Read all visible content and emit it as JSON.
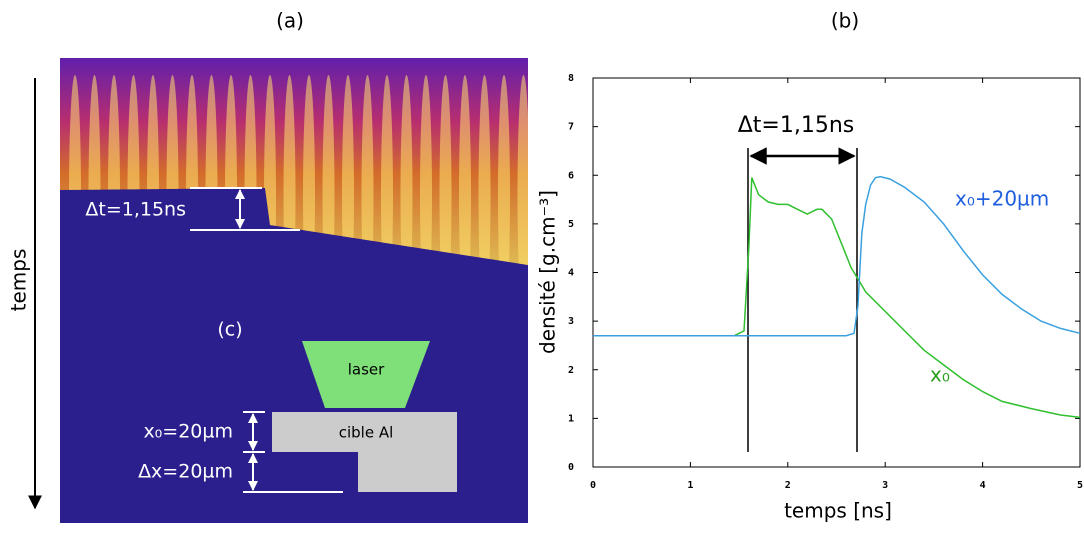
{
  "panel_a": {
    "title": "(a)",
    "time_axis_label": "temps",
    "delta_t_label": "Δt=1,15ns",
    "inset_label": "(c)",
    "laser_label": "laser",
    "target_label": "cible Al",
    "x0_label": "x₀=20µm",
    "dx_label": "Δx=20µm"
  },
  "chart_data": {
    "type": "line",
    "title": "(b)",
    "x_label": "temps [ns]",
    "y_label": "densité [g.cm⁻³]",
    "annotation": "Δt=1,15ns",
    "xlim": [
      0,
      5
    ],
    "ylim": [
      0,
      8
    ],
    "xticks": [
      0,
      1,
      2,
      3,
      4,
      5
    ],
    "yticks": [
      0,
      1,
      2,
      3,
      4,
      5,
      6,
      7,
      8
    ],
    "series": [
      {
        "name": "x₀",
        "color": "#2fbf2f",
        "label_color": "#2a9e1e",
        "x": [
          1.45,
          1.55,
          1.6,
          1.63,
          1.7,
          1.8,
          1.9,
          2.0,
          2.1,
          2.2,
          2.3,
          2.35,
          2.45,
          2.55,
          2.65,
          2.8,
          3.0,
          3.2,
          3.4,
          3.6,
          3.8,
          4.0,
          4.2,
          4.5,
          4.8,
          5.0
        ],
        "values": [
          2.7,
          2.8,
          4.5,
          5.95,
          5.6,
          5.45,
          5.4,
          5.4,
          5.3,
          5.2,
          5.3,
          5.3,
          5.1,
          4.6,
          4.1,
          3.6,
          3.2,
          2.8,
          2.4,
          2.1,
          1.8,
          1.55,
          1.35,
          1.2,
          1.07,
          1.02
        ]
      },
      {
        "name": "x₀+20µm",
        "color": "#3aa0e0",
        "label_color": "#1f5fdf",
        "x": [
          0,
          2.6,
          2.68,
          2.72,
          2.76,
          2.8,
          2.85,
          2.9,
          2.95,
          3.05,
          3.2,
          3.4,
          3.6,
          3.8,
          4.0,
          4.2,
          4.4,
          4.6,
          4.8,
          5.0
        ],
        "values": [
          2.7,
          2.7,
          2.75,
          3.3,
          4.8,
          5.4,
          5.8,
          5.95,
          5.97,
          5.92,
          5.75,
          5.45,
          5.0,
          4.45,
          3.95,
          3.55,
          3.25,
          3.0,
          2.85,
          2.75
        ]
      }
    ]
  }
}
